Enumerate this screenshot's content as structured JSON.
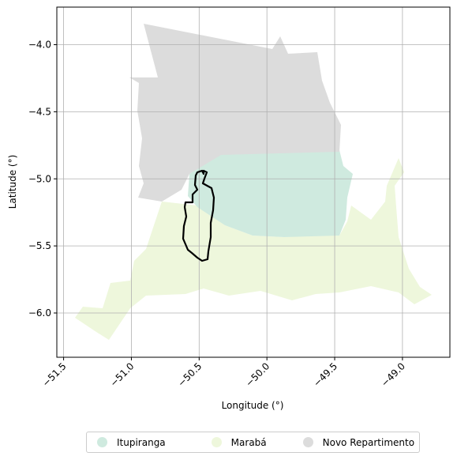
{
  "map": {
    "xlabel": "Longitude (°)",
    "ylabel": "Latitude (°)",
    "x_ticks": [
      -51.5,
      -51.0,
      -50.5,
      -50.0,
      -49.5,
      -49.0
    ],
    "x_tick_labels": [
      "−51.5",
      "−51.0",
      "−50.5",
      "−50.0",
      "−49.5",
      "−49.0"
    ],
    "y_ticks": [
      -4.0,
      -4.5,
      -5.0,
      -5.5,
      -6.0
    ],
    "y_tick_labels": [
      "−4.0",
      "−4.5",
      "−5.0",
      "−5.5",
      "−6.0"
    ],
    "xlim": [
      -51.55,
      -48.65
    ],
    "ylim": [
      -6.33,
      -3.72
    ],
    "grid": true,
    "legend_placement": "bottom-center",
    "regions": [
      {
        "name": "Itupiranga",
        "color": "#cfeadf"
      },
      {
        "name": "Marabá",
        "color": "#eef7dc"
      },
      {
        "name": "Novo Repartimento",
        "color": "#dcdcdc"
      }
    ],
    "outline_color": "#000000"
  }
}
